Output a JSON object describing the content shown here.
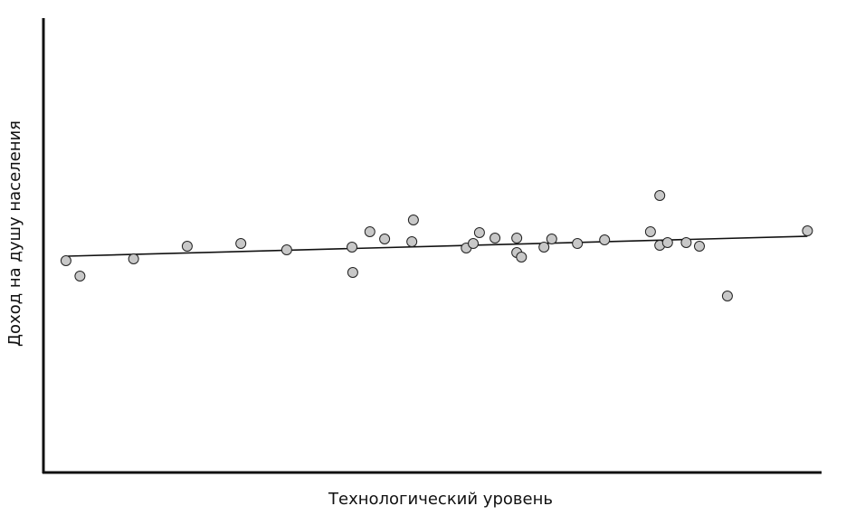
{
  "chart_data": {
    "type": "scatter",
    "x_label": "Технологический уровень",
    "y_label": "Доход на душу населения",
    "xlim": [
      0,
      100
    ],
    "ylim": [
      0,
      100
    ],
    "color": "#c8c8c8",
    "edge_color": "#222222",
    "x": [
      2.9,
      4.7,
      11.6,
      18.5,
      25.4,
      31.3,
      39.7,
      39.8,
      42.0,
      43.9,
      47.6,
      47.4,
      54.4,
      55.3,
      56.1,
      58.1,
      60.9,
      60.9,
      61.5,
      64.4,
      65.4,
      68.7,
      72.2,
      78.1,
      79.3,
      79.3,
      80.3,
      82.7,
      84.4,
      88.0,
      98.3
    ],
    "y": [
      46.8,
      43.4,
      47.2,
      50.0,
      50.6,
      49.2,
      49.8,
      44.2,
      53.2,
      51.6,
      55.8,
      51.0,
      49.6,
      50.6,
      53.0,
      51.8,
      51.8,
      48.6,
      47.6,
      49.8,
      51.6,
      50.6,
      51.4,
      53.2,
      61.2,
      50.2,
      50.8,
      50.8,
      50.0,
      39.0,
      53.4
    ],
    "trendline": {
      "x": [
        3.1,
        98.3
      ],
      "y": [
        47.8,
        52.2
      ]
    }
  }
}
